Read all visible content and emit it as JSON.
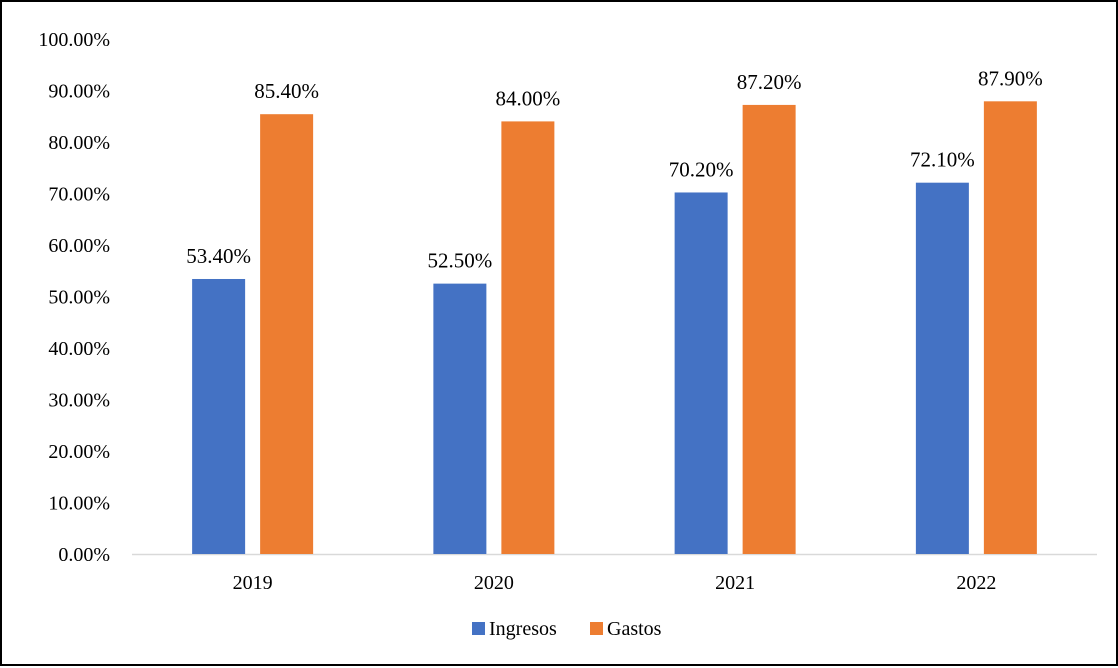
{
  "chart_data": {
    "type": "bar",
    "categories": [
      "2019",
      "2020",
      "2021",
      "2022"
    ],
    "series": [
      {
        "name": "Ingresos",
        "values": [
          53.4,
          52.5,
          70.2,
          72.1
        ],
        "labels": [
          "53.40%",
          "52.50%",
          "70.20%",
          "72.10%"
        ],
        "color": "#4472C4"
      },
      {
        "name": "Gastos",
        "values": [
          85.4,
          84.0,
          87.2,
          87.9
        ],
        "labels": [
          "85.40%",
          "84.00%",
          "87.20%",
          "87.90%"
        ],
        "color": "#ED7D31"
      }
    ],
    "ylim": [
      0,
      100
    ],
    "yticks": [
      0,
      10,
      20,
      30,
      40,
      50,
      60,
      70,
      80,
      90,
      100
    ],
    "ytick_labels": [
      "0.00%",
      "10.00%",
      "20.00%",
      "30.00%",
      "40.00%",
      "50.00%",
      "60.00%",
      "70.00%",
      "80.00%",
      "90.00%",
      "100.00%"
    ],
    "grid": false,
    "legend": "bottom",
    "title": "",
    "xlabel": "",
    "ylabel": ""
  }
}
